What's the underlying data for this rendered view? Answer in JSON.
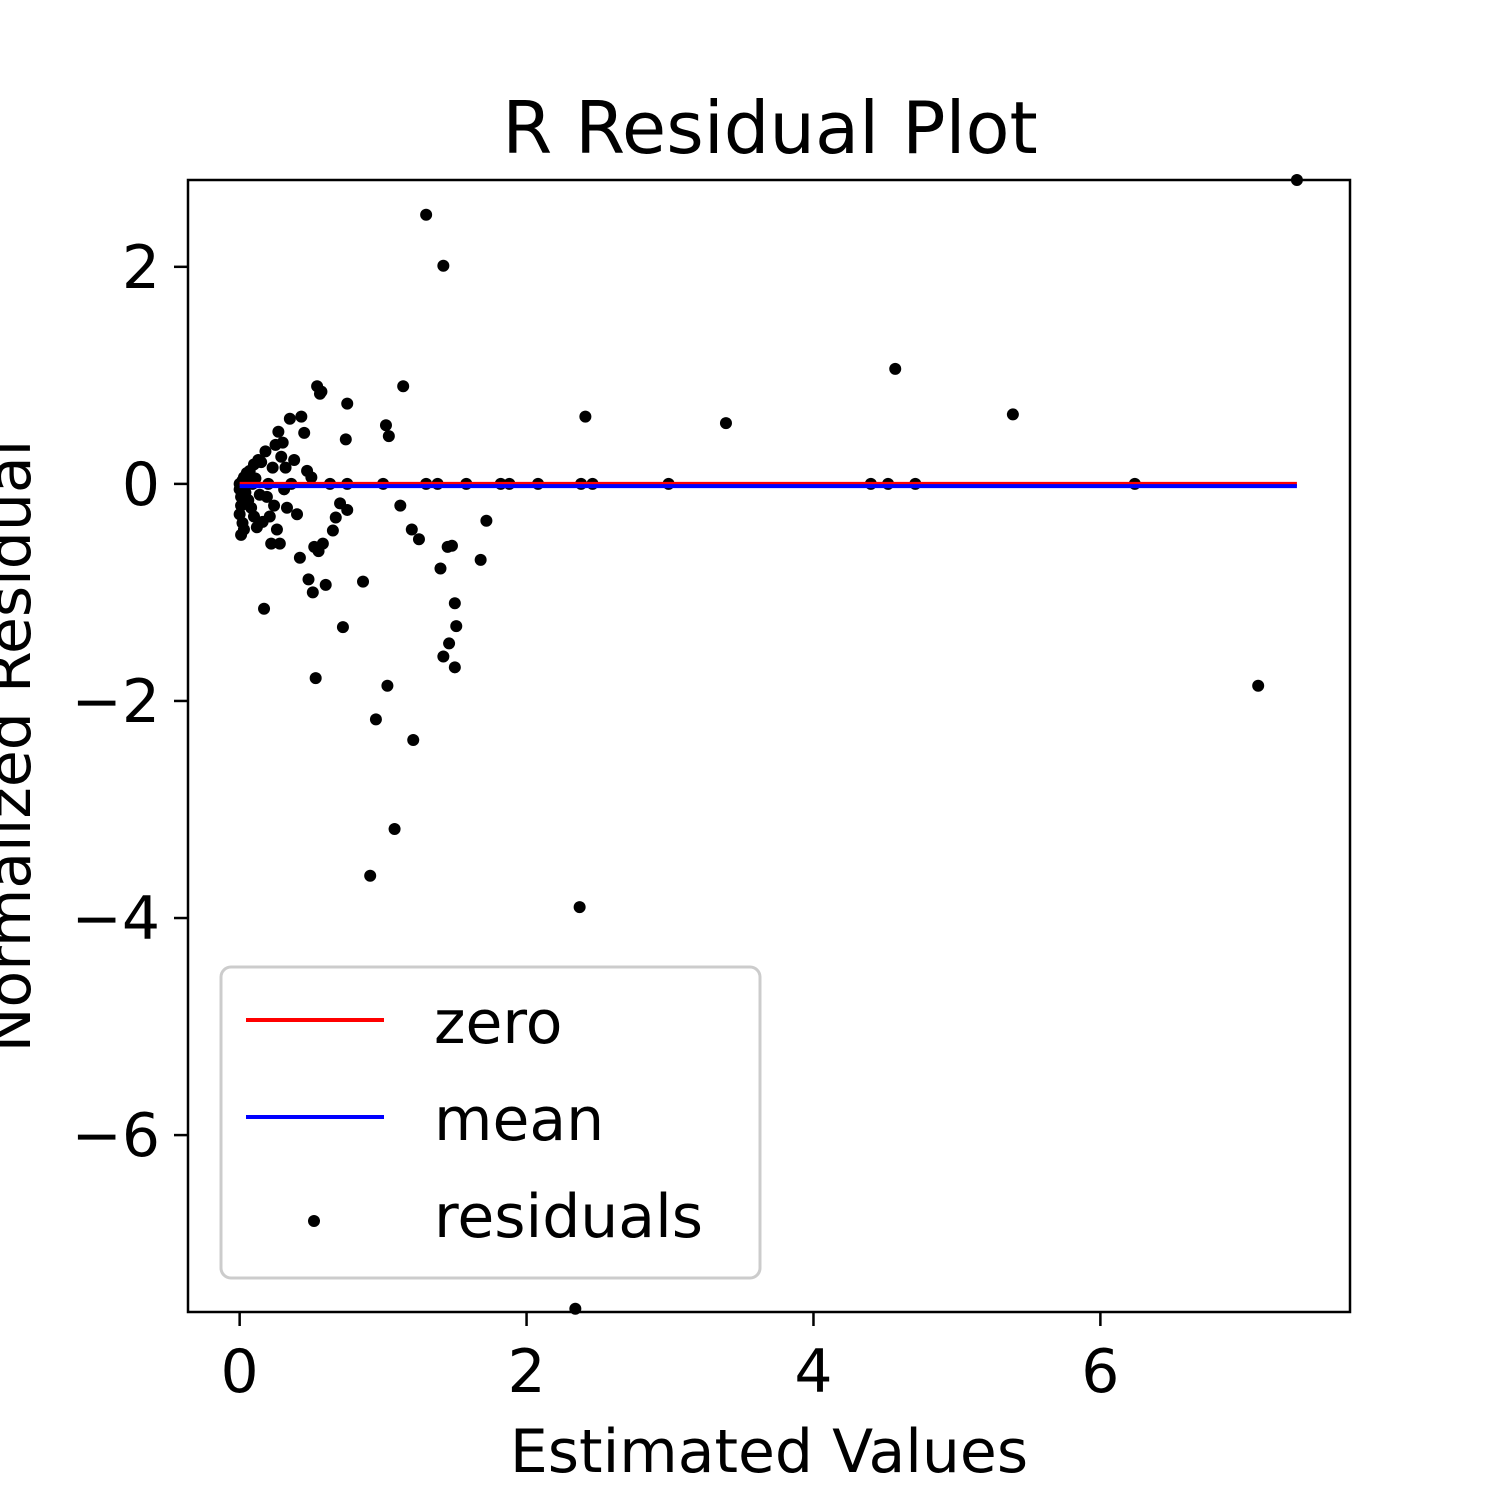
{
  "chart_data": {
    "type": "scatter",
    "title": "R Residual Plot",
    "xlabel": "Estimated Values",
    "ylabel": "Normalized Residual",
    "xlim": [
      -0.36,
      7.74
    ],
    "ylim": [
      -7.63,
      2.8
    ],
    "xticks": [
      0,
      2,
      4,
      6
    ],
    "xtick_labels": [
      "0",
      "2",
      "4",
      "6"
    ],
    "yticks": [
      2,
      0,
      -2,
      -4,
      -6
    ],
    "ytick_labels": [
      "2",
      "0",
      "−2",
      "−4",
      "−6"
    ],
    "grid": false,
    "legend_position": "lower-left",
    "series": [
      {
        "name": "zero",
        "kind": "line",
        "color": "#ff0000",
        "x": [
          0,
          7.37
        ],
        "y": [
          0,
          0
        ]
      },
      {
        "name": "mean",
        "kind": "line",
        "color": "#0000ff",
        "x": [
          0,
          7.37
        ],
        "y": [
          -0.02,
          -0.02
        ]
      },
      {
        "name": "residuals",
        "kind": "scatter",
        "color": "#000000",
        "points": [
          [
            0.0,
            0.0
          ],
          [
            0.0,
            -0.05
          ],
          [
            0.01,
            -0.12
          ],
          [
            0.01,
            -0.2
          ],
          [
            0.0,
            -0.28
          ],
          [
            0.02,
            -0.36
          ],
          [
            0.01,
            -0.47
          ],
          [
            0.03,
            -0.42
          ],
          [
            0.02,
            0.03
          ],
          [
            0.03,
            0.06
          ],
          [
            0.04,
            -0.08
          ],
          [
            0.05,
            0.1
          ],
          [
            0.06,
            -0.15
          ],
          [
            0.07,
            0.12
          ],
          [
            0.08,
            -0.22
          ],
          [
            0.09,
            0.0
          ],
          [
            0.1,
            -0.3
          ],
          [
            0.1,
            0.18
          ],
          [
            0.11,
            0.05
          ],
          [
            0.12,
            -0.4
          ],
          [
            0.13,
            0.22
          ],
          [
            0.14,
            -0.1
          ],
          [
            0.15,
            0.2
          ],
          [
            0.16,
            -0.35
          ],
          [
            0.17,
            -1.15
          ],
          [
            0.18,
            0.3
          ],
          [
            0.19,
            -0.12
          ],
          [
            0.2,
            0.0
          ],
          [
            0.21,
            -0.3
          ],
          [
            0.22,
            -0.55
          ],
          [
            0.23,
            0.15
          ],
          [
            0.24,
            -0.2
          ],
          [
            0.25,
            0.36
          ],
          [
            0.26,
            -0.42
          ],
          [
            0.27,
            0.48
          ],
          [
            0.28,
            -0.55
          ],
          [
            0.29,
            0.25
          ],
          [
            0.3,
            0.38
          ],
          [
            0.31,
            -0.05
          ],
          [
            0.32,
            0.15
          ],
          [
            0.33,
            -0.22
          ],
          [
            0.35,
            0.6
          ],
          [
            0.36,
            0.0
          ],
          [
            0.38,
            0.22
          ],
          [
            0.4,
            -0.28
          ],
          [
            0.42,
            -0.68
          ],
          [
            0.43,
            0.62
          ],
          [
            0.45,
            0.47
          ],
          [
            0.47,
            0.12
          ],
          [
            0.48,
            -0.88
          ],
          [
            0.5,
            0.06
          ],
          [
            0.51,
            -1.0
          ],
          [
            0.52,
            -0.58
          ],
          [
            0.53,
            -1.79
          ],
          [
            0.54,
            0.9
          ],
          [
            0.55,
            -0.62
          ],
          [
            0.56,
            0.83
          ],
          [
            0.57,
            0.85
          ],
          [
            0.58,
            -0.55
          ],
          [
            0.6,
            -0.93
          ],
          [
            0.63,
            0.0
          ],
          [
            0.65,
            -0.43
          ],
          [
            0.67,
            -0.31
          ],
          [
            0.7,
            -0.18
          ],
          [
            0.72,
            -1.32
          ],
          [
            0.74,
            0.41
          ],
          [
            0.75,
            0.0
          ],
          [
            0.75,
            0.74
          ],
          [
            0.75,
            -0.24
          ],
          [
            0.86,
            -0.9
          ],
          [
            0.91,
            -3.61
          ],
          [
            0.95,
            -2.17
          ],
          [
            1.0,
            0.0
          ],
          [
            1.02,
            0.54
          ],
          [
            1.03,
            -1.86
          ],
          [
            1.04,
            0.44
          ],
          [
            1.08,
            -3.18
          ],
          [
            1.12,
            -0.2
          ],
          [
            1.14,
            0.9
          ],
          [
            1.2,
            -0.42
          ],
          [
            1.21,
            -2.36
          ],
          [
            1.25,
            -0.51
          ],
          [
            1.3,
            2.48
          ],
          [
            1.3,
            0.0
          ],
          [
            1.38,
            0.0
          ],
          [
            1.4,
            -0.78
          ],
          [
            1.42,
            -1.59
          ],
          [
            1.42,
            2.01
          ],
          [
            1.45,
            -0.58
          ],
          [
            1.46,
            -1.47
          ],
          [
            1.48,
            -0.57
          ],
          [
            1.5,
            -1.1
          ],
          [
            1.51,
            -1.31
          ],
          [
            1.5,
            -1.69
          ],
          [
            1.58,
            0.0
          ],
          [
            1.68,
            -0.7
          ],
          [
            1.72,
            -0.34
          ],
          [
            1.82,
            0.0
          ],
          [
            1.88,
            0.0
          ],
          [
            2.08,
            0.0
          ],
          [
            2.34,
            -7.6
          ],
          [
            2.37,
            -3.9
          ],
          [
            2.38,
            0.0
          ],
          [
            2.41,
            0.62
          ],
          [
            2.46,
            0.0
          ],
          [
            2.99,
            0.0
          ],
          [
            3.39,
            0.56
          ],
          [
            4.4,
            0.0
          ],
          [
            4.52,
            0.0
          ],
          [
            4.57,
            1.06
          ],
          [
            4.71,
            0.0
          ],
          [
            5.39,
            0.64
          ],
          [
            6.24,
            0.0
          ],
          [
            7.1,
            -1.86
          ],
          [
            7.37,
            2.8
          ]
        ]
      }
    ]
  }
}
